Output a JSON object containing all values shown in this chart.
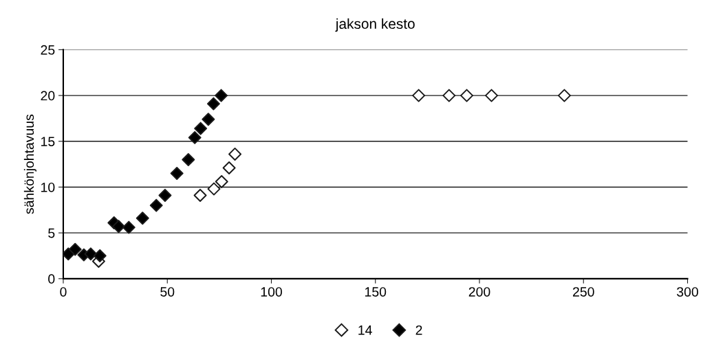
{
  "chart_data": {
    "type": "scatter",
    "title": "jakson kesto",
    "ylabel": "sähkönjohtavuus",
    "xlim": [
      0,
      300
    ],
    "xticks": [
      0,
      50,
      100,
      150,
      200,
      250,
      300
    ],
    "ylim": [
      0,
      25
    ],
    "yticks": [
      0,
      5,
      10,
      15,
      20,
      25
    ],
    "grid": "y",
    "legend": "bottom",
    "marker": "diamond",
    "series": [
      {
        "name": "14",
        "color": "#ffffff",
        "x": [
          17.0,
          65.8,
          72.4,
          76.1,
          79.7,
          82.5,
          170.8,
          185.4,
          193.9,
          205.8,
          240.8
        ],
        "values": [
          1.9,
          9.1,
          9.8,
          10.6,
          12.1,
          13.6,
          20,
          20,
          20,
          20,
          20
        ]
      },
      {
        "name": "2",
        "color": "#000000",
        "x": [
          2.4,
          5.7,
          9.9,
          13.2,
          17.6,
          24.4,
          26.6,
          31.5,
          38.1,
          44.7,
          48.9,
          54.6,
          60.1,
          63.2,
          66.0,
          69.7,
          72.2,
          75.9
        ],
        "values": [
          2.7,
          3.2,
          2.6,
          2.7,
          2.5,
          6.1,
          5.7,
          5.6,
          6.6,
          8.0,
          9.1,
          11.5,
          13.0,
          15.4,
          16.4,
          17.4,
          19.1,
          20.0
        ]
      }
    ]
  }
}
